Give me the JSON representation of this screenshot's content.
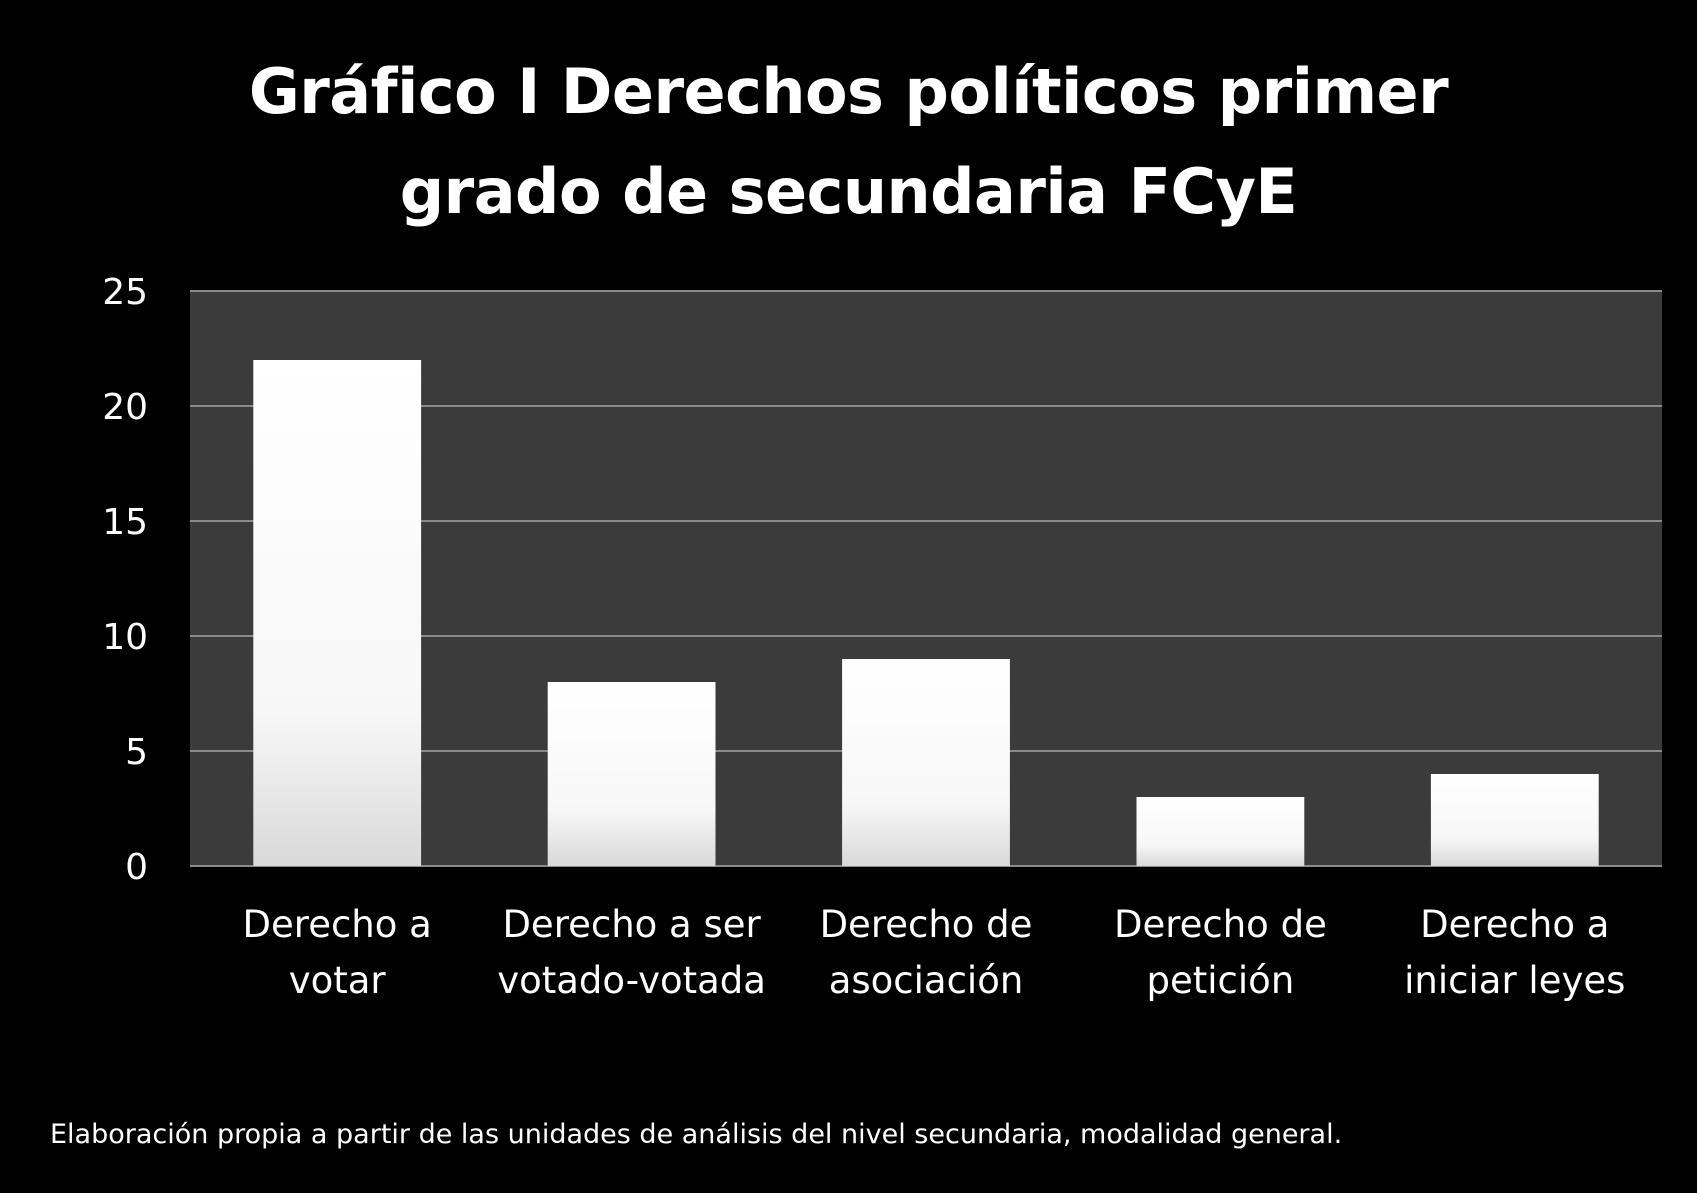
{
  "chart_data": {
    "type": "bar",
    "title_lines": [
      "Gráfico I Derechos políticos primer",
      "grado de secundaria FCyE"
    ],
    "categories": [
      [
        "Derecho a",
        "votar"
      ],
      [
        "Derecho a ser",
        "votado-votada"
      ],
      [
        "Derecho de",
        "asociación"
      ],
      [
        "Derecho de",
        "petición"
      ],
      [
        "Derecho a",
        "iniciar leyes"
      ]
    ],
    "values": [
      22,
      8,
      9,
      3,
      4
    ],
    "ylim": [
      0,
      25
    ],
    "yticks": [
      0,
      5,
      10,
      15,
      20,
      25
    ],
    "grid": true,
    "colors": {
      "background": "#000000",
      "plot_area": "#3b3b3b",
      "gridline": "#8a8a8a",
      "bar_top": "#ffffff",
      "bar_bottom": "#d9d9d9"
    }
  },
  "source_note": "Elaboración propia a partir de las unidades de análisis del nivel secundaria, modalidad general."
}
